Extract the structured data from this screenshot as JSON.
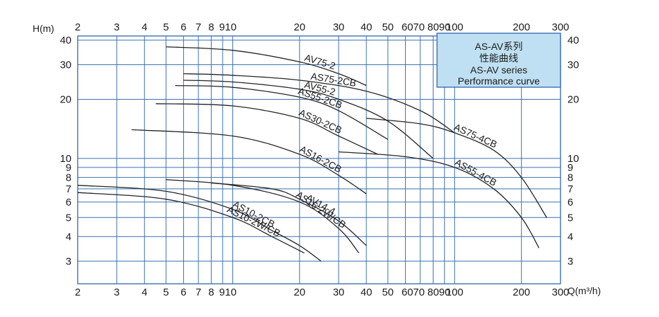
{
  "chart_data": {
    "type": "line",
    "title": "",
    "xlabel": "Q(m³/h)",
    "ylabel": "H(m)",
    "x_scale": "log",
    "y_scale": "log",
    "xlim": [
      2,
      300
    ],
    "ylim": [
      2.3,
      42
    ],
    "grid": true,
    "x_ticks_top": [
      "2",
      "3",
      "4",
      "5",
      "6",
      "7",
      "8",
      "9",
      "10",
      "20",
      "30",
      "40",
      "50",
      "60",
      "70",
      "80",
      "90",
      "100",
      "200",
      "300"
    ],
    "x_ticks_top_text": [
      "2",
      "3",
      "4",
      "5",
      "6",
      "7",
      "8",
      "910",
      "20",
      "30",
      "40",
      "50",
      "6070",
      "8090",
      "100",
      "200",
      "300"
    ],
    "x_ticks_bottom_text": [
      "2",
      "3",
      "4",
      "5",
      "6",
      "7",
      "8",
      "910",
      "20",
      "30",
      "40",
      "50",
      "6070",
      "8090",
      "100",
      "200",
      "300"
    ],
    "y_ticks": [
      "3",
      "4",
      "5",
      "6",
      "7",
      "8",
      "9",
      "10",
      "20",
      "30",
      "40"
    ],
    "legend_box": {
      "line1": "AS-AV系列",
      "line2": "性能曲线",
      "line3": "AS-AV series",
      "line4": "Performance curve",
      "fill": "#bfe0f2"
    },
    "line_color": "#222222",
    "grid_color": "#3a6fb0",
    "series": [
      {
        "name": "AV75-2",
        "x": [
          5,
          10,
          20,
          30,
          40
        ],
        "y": [
          37,
          35.5,
          31,
          27,
          23.5
        ]
      },
      {
        "name": "AS75-2CB",
        "x": [
          6,
          10,
          20,
          40,
          70,
          100
        ],
        "y": [
          27,
          26.5,
          25,
          22,
          17.5,
          13.5
        ]
      },
      {
        "name": "AV55-2",
        "x": [
          6,
          10,
          20,
          30,
          50,
          80
        ],
        "y": [
          25,
          24.5,
          22.5,
          20,
          15.5,
          10
        ]
      },
      {
        "name": "AS55-2CB",
        "x": [
          5.5,
          10,
          20,
          30,
          50
        ],
        "y": [
          23.5,
          23,
          20.5,
          17.5,
          12.5
        ]
      },
      {
        "name": "AS30-2CB",
        "x": [
          4.5,
          10,
          20,
          30,
          45
        ],
        "y": [
          19,
          18.5,
          16,
          13,
          10.5
        ]
      },
      {
        "name": "AS16-2CB",
        "x": [
          3.5,
          10,
          20,
          30,
          40
        ],
        "y": [
          14,
          13,
          10.5,
          8.2,
          6.6
        ]
      },
      {
        "name": "AS75-4CB",
        "x": [
          40,
          70,
          100,
          150,
          200,
          260
        ],
        "y": [
          16,
          15,
          13.5,
          11,
          8,
          5
        ]
      },
      {
        "name": "AS55-4CB",
        "x": [
          30,
          60,
          100,
          150,
          200,
          240
        ],
        "y": [
          10.8,
          10.2,
          9,
          7,
          5,
          3.5
        ]
      },
      {
        "name": "AS16-2W/CB",
        "x": [
          5,
          10,
          20,
          30,
          37
        ],
        "y": [
          7.8,
          7.3,
          6,
          4.4,
          3.3
        ]
      },
      {
        "name": "AV14-4",
        "x": [
          8,
          15,
          20,
          30,
          40
        ],
        "y": [
          7.5,
          7,
          6.2,
          4.8,
          3.6
        ]
      },
      {
        "name": "AS10-2CB",
        "x": [
          2,
          5,
          10,
          15,
          20,
          25
        ],
        "y": [
          7.3,
          6.8,
          5.5,
          4.3,
          3.6,
          3
        ]
      },
      {
        "name": "AS10-2W/CB",
        "x": [
          2,
          5,
          10,
          15,
          21
        ],
        "y": [
          6.7,
          6.2,
          5,
          4,
          3.3
        ]
      }
    ]
  }
}
